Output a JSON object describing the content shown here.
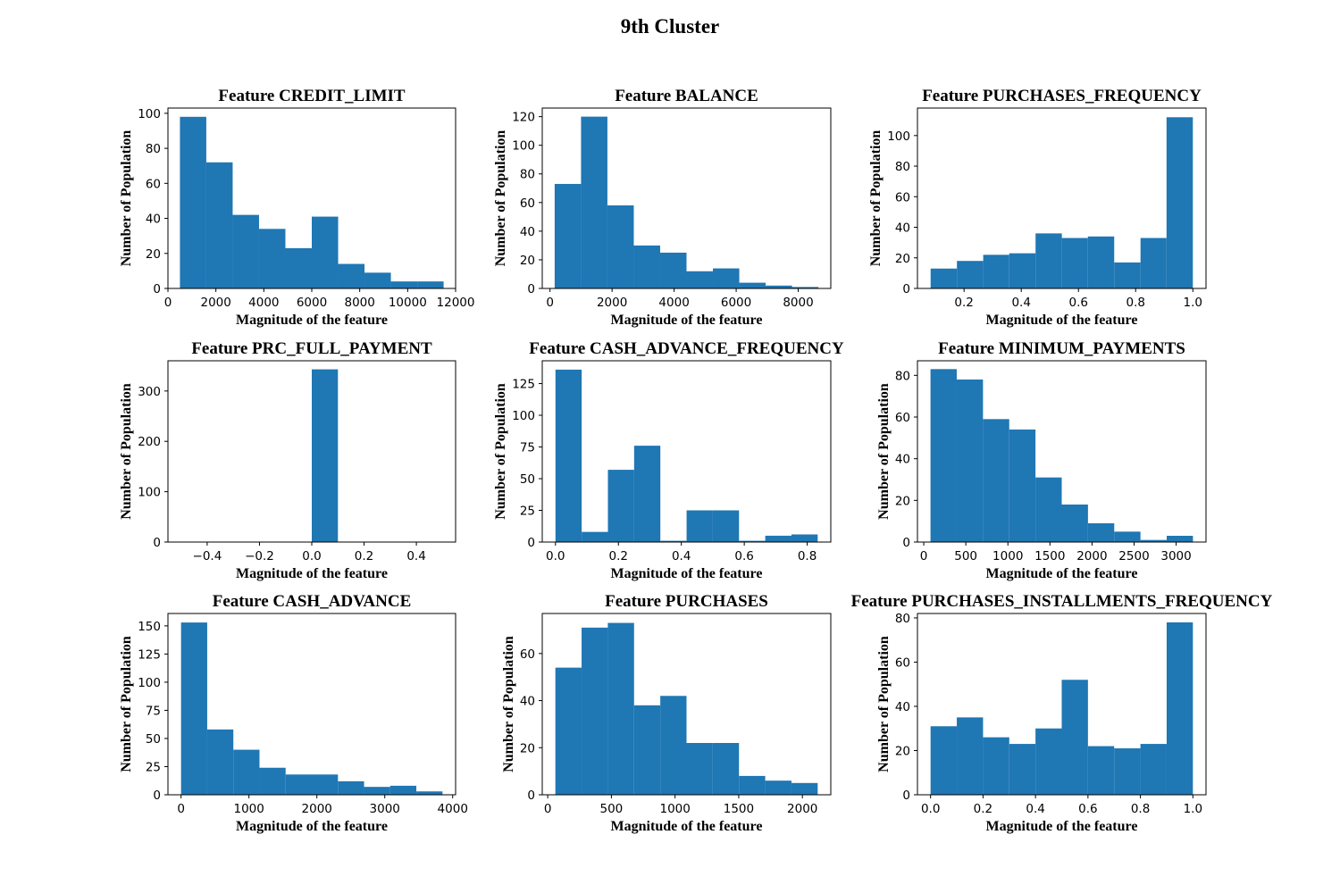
{
  "figure": {
    "title": "9th Cluster",
    "bar_color": "#1f77b4"
  },
  "chart_data": [
    {
      "type": "bar",
      "title": "Feature CREDIT_LIMIT",
      "xlabel": "Magnitude of the feature",
      "ylabel": "Number of Population",
      "bin_edges": [
        500,
        1600,
        2700,
        3800,
        4900,
        6000,
        7100,
        8200,
        9300,
        10400,
        11500
      ],
      "values": [
        98,
        72,
        42,
        34,
        23,
        41,
        14,
        9,
        4,
        4
      ],
      "xlim": [
        0,
        12000
      ],
      "ylim": [
        0,
        103
      ],
      "xticks": [
        0,
        2000,
        4000,
        6000,
        8000,
        10000,
        12000
      ],
      "xtick_labels": [
        "0",
        "2000",
        "4000",
        "6000",
        "8000",
        "10000",
        "12000"
      ],
      "yticks": [
        0,
        20,
        40,
        60,
        80,
        100
      ],
      "ytick_labels": [
        "0",
        "20",
        "40",
        "60",
        "80",
        "100"
      ]
    },
    {
      "type": "bar",
      "title": "Feature BALANCE",
      "xlabel": "Magnitude of the feature",
      "ylabel": "Number of Population",
      "bin_edges": [
        150,
        1000,
        1850,
        2700,
        3550,
        4400,
        5250,
        6100,
        6950,
        7800,
        8650
      ],
      "values": [
        73,
        120,
        58,
        30,
        25,
        12,
        14,
        4,
        2,
        1
      ],
      "xlim": [
        -250,
        9050
      ],
      "ylim": [
        0,
        126
      ],
      "xticks": [
        0,
        2000,
        4000,
        6000,
        8000
      ],
      "xtick_labels": [
        "0",
        "2000",
        "4000",
        "6000",
        "8000"
      ],
      "yticks": [
        0,
        20,
        40,
        60,
        80,
        100,
        120
      ],
      "ytick_labels": [
        "0",
        "20",
        "40",
        "60",
        "80",
        "100",
        "120"
      ]
    },
    {
      "type": "bar",
      "title": "Feature PURCHASES_FREQUENCY",
      "xlabel": "Magnitude of the feature",
      "ylabel": "Number of Population",
      "bin_edges": [
        0.083,
        0.175,
        0.267,
        0.358,
        0.45,
        0.542,
        0.633,
        0.725,
        0.817,
        0.908,
        1.0
      ],
      "values": [
        13,
        18,
        22,
        23,
        36,
        33,
        34,
        17,
        33,
        112
      ],
      "xlim": [
        0.037,
        1.046
      ],
      "ylim": [
        0,
        118
      ],
      "xticks": [
        0.2,
        0.4,
        0.6,
        0.8,
        1.0
      ],
      "xtick_labels": [
        "0.2",
        "0.4",
        "0.6",
        "0.8",
        "1.0"
      ],
      "yticks": [
        0,
        20,
        40,
        60,
        80,
        100
      ],
      "ytick_labels": [
        "0",
        "20",
        "40",
        "60",
        "80",
        "100"
      ]
    },
    {
      "type": "bar",
      "title": "Feature PRC_FULL_PAYMENT",
      "xlabel": "Magnitude of the feature",
      "ylabel": "Number of Population",
      "bin_edges": [
        -0.5,
        -0.4,
        -0.3,
        -0.2,
        -0.1,
        0.0,
        0.1,
        0.2,
        0.3,
        0.4,
        0.5
      ],
      "values": [
        0,
        0,
        0,
        0,
        0,
        343,
        0,
        0,
        0,
        0
      ],
      "xlim": [
        -0.55,
        0.55
      ],
      "ylim": [
        0,
        360
      ],
      "xticks": [
        -0.4,
        -0.2,
        0.0,
        0.2,
        0.4
      ],
      "xtick_labels": [
        "−0.4",
        "−0.2",
        "0.0",
        "0.2",
        "0.4"
      ],
      "yticks": [
        0,
        100,
        200,
        300
      ],
      "ytick_labels": [
        "0",
        "100",
        "200",
        "300"
      ]
    },
    {
      "type": "bar",
      "title": "Feature CASH_ADVANCE_FREQUENCY",
      "xlabel": "Magnitude of the feature",
      "ylabel": "Number of Population",
      "bin_edges": [
        0.0,
        0.0833,
        0.1667,
        0.25,
        0.3333,
        0.4167,
        0.5,
        0.5833,
        0.6667,
        0.75,
        0.8333
      ],
      "values": [
        136,
        8,
        57,
        76,
        1,
        25,
        25,
        1,
        5,
        6
      ],
      "xlim": [
        -0.042,
        0.875
      ],
      "ylim": [
        0,
        143
      ],
      "xticks": [
        0.0,
        0.2,
        0.4,
        0.6,
        0.8
      ],
      "xtick_labels": [
        "0.0",
        "0.2",
        "0.4",
        "0.6",
        "0.8"
      ],
      "yticks": [
        0,
        25,
        50,
        75,
        100,
        125
      ],
      "ytick_labels": [
        "0",
        "25",
        "50",
        "75",
        "100",
        "125"
      ]
    },
    {
      "type": "bar",
      "title": "Feature MINIMUM_PAYMENTS",
      "xlabel": "Magnitude of the feature",
      "ylabel": "Number of Population",
      "bin_edges": [
        80,
        392,
        704,
        1016,
        1328,
        1640,
        1952,
        2264,
        2576,
        2888,
        3200
      ],
      "values": [
        83,
        78,
        59,
        54,
        31,
        18,
        9,
        5,
        1,
        3
      ],
      "xlim": [
        -75,
        3355
      ],
      "ylim": [
        0,
        87
      ],
      "xticks": [
        0,
        500,
        1000,
        1500,
        2000,
        2500,
        3000
      ],
      "xtick_labels": [
        "0",
        "500",
        "1000",
        "1500",
        "2000",
        "2500",
        "3000"
      ],
      "yticks": [
        0,
        20,
        40,
        60,
        80
      ],
      "ytick_labels": [
        "0",
        "20",
        "40",
        "60",
        "80"
      ]
    },
    {
      "type": "bar",
      "title": "Feature CASH_ADVANCE",
      "xlabel": "Magnitude of the feature",
      "ylabel": "Number of Population",
      "bin_edges": [
        0,
        385,
        770,
        1155,
        1540,
        1925,
        2310,
        2695,
        3080,
        3465,
        3850
      ],
      "values": [
        153,
        58,
        40,
        24,
        18,
        18,
        12,
        7,
        8,
        3
      ],
      "xlim": [
        -193,
        4043
      ],
      "ylim": [
        0,
        161
      ],
      "xticks": [
        0,
        1000,
        2000,
        3000,
        4000
      ],
      "xtick_labels": [
        "0",
        "1000",
        "2000",
        "3000",
        "4000"
      ],
      "yticks": [
        0,
        25,
        50,
        75,
        100,
        125,
        150
      ],
      "ytick_labels": [
        "0",
        "25",
        "50",
        "75",
        "100",
        "125",
        "150"
      ]
    },
    {
      "type": "bar",
      "title": "Feature PURCHASES",
      "xlabel": "Magnitude of the feature",
      "ylabel": "Number of Population",
      "bin_edges": [
        60,
        266,
        472,
        678,
        884,
        1090,
        1296,
        1502,
        1708,
        1914,
        2120
      ],
      "values": [
        54,
        71,
        73,
        38,
        42,
        22,
        22,
        8,
        6,
        5
      ],
      "xlim": [
        -43,
        2223
      ],
      "ylim": [
        0,
        77
      ],
      "xticks": [
        0,
        500,
        1000,
        1500,
        2000
      ],
      "xtick_labels": [
        "0",
        "500",
        "1000",
        "1500",
        "2000"
      ],
      "yticks": [
        0,
        20,
        40,
        60
      ],
      "ytick_labels": [
        "0",
        "20",
        "40",
        "60"
      ]
    },
    {
      "type": "bar",
      "title": "Feature PURCHASES_INSTALLMENTS_FREQUENCY",
      "xlabel": "Magnitude of the feature",
      "ylabel": "Number of Population",
      "bin_edges": [
        0.0,
        0.1,
        0.2,
        0.3,
        0.4,
        0.5,
        0.6,
        0.7,
        0.8,
        0.9,
        1.0
      ],
      "values": [
        31,
        35,
        26,
        23,
        30,
        52,
        22,
        21,
        23,
        78
      ],
      "xlim": [
        -0.05,
        1.05
      ],
      "ylim": [
        0,
        82
      ],
      "xticks": [
        0.0,
        0.2,
        0.4,
        0.6,
        0.8,
        1.0
      ],
      "xtick_labels": [
        "0.0",
        "0.2",
        "0.4",
        "0.6",
        "0.8",
        "1.0"
      ],
      "yticks": [
        0,
        20,
        40,
        60,
        80
      ],
      "ytick_labels": [
        "0",
        "20",
        "40",
        "60",
        "80"
      ]
    }
  ]
}
